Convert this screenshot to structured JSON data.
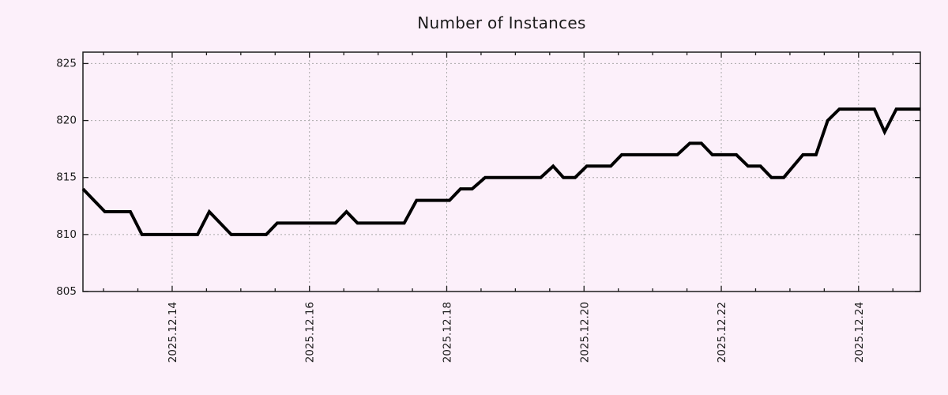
{
  "title": "Number of Instances",
  "colors": {
    "background": "#fcf0fa",
    "series_line": "#000000",
    "grid": "#a9a9a9",
    "border": "#1c1c1c",
    "text": "#1a1a1a"
  },
  "chart_data": {
    "type": "line",
    "title": "Number of Instances",
    "xlabel": "",
    "ylabel": "",
    "grid": true,
    "legend": "none",
    "x_axis": {
      "tick_labels": [
        "2025.12.14",
        "2025.12.16",
        "2025.12.18",
        "2025.12.20",
        "2025.12.22",
        "2025.12.24"
      ],
      "tick_days": [
        14,
        16,
        18,
        20,
        22,
        24
      ],
      "minor_tick_interval_days": 0.5,
      "range_days": [
        12.7,
        24.9
      ],
      "label_rotation_degrees": 90
    },
    "y_axis": {
      "ticks": [
        805,
        810,
        815,
        820,
        825
      ],
      "range": [
        805,
        826
      ]
    },
    "series": [
      {
        "name": "instances",
        "points": [
          [
            12.7,
            814
          ],
          [
            12.86,
            813
          ],
          [
            13.02,
            812
          ],
          [
            13.39,
            812
          ],
          [
            13.56,
            810
          ],
          [
            14.37,
            810
          ],
          [
            14.54,
            812
          ],
          [
            14.86,
            810
          ],
          [
            15.37,
            810
          ],
          [
            15.53,
            811
          ],
          [
            16.38,
            811
          ],
          [
            16.54,
            812
          ],
          [
            16.7,
            811
          ],
          [
            17.38,
            811
          ],
          [
            17.56,
            813
          ],
          [
            18.04,
            813
          ],
          [
            18.2,
            814
          ],
          [
            18.37,
            814
          ],
          [
            18.56,
            815
          ],
          [
            19.37,
            815
          ],
          [
            19.55,
            816
          ],
          [
            19.7,
            815
          ],
          [
            19.87,
            815
          ],
          [
            20.04,
            816
          ],
          [
            20.39,
            816
          ],
          [
            20.55,
            817
          ],
          [
            21.36,
            817
          ],
          [
            21.54,
            818
          ],
          [
            21.71,
            818
          ],
          [
            21.87,
            817
          ],
          [
            22.22,
            817
          ],
          [
            22.39,
            816
          ],
          [
            22.57,
            816
          ],
          [
            22.73,
            815
          ],
          [
            22.91,
            815
          ],
          [
            23.19,
            817
          ],
          [
            23.38,
            817
          ],
          [
            23.55,
            820
          ],
          [
            23.72,
            821
          ],
          [
            24.23,
            821
          ],
          [
            24.38,
            819
          ],
          [
            24.55,
            821
          ],
          [
            24.9,
            821
          ]
        ]
      }
    ]
  }
}
